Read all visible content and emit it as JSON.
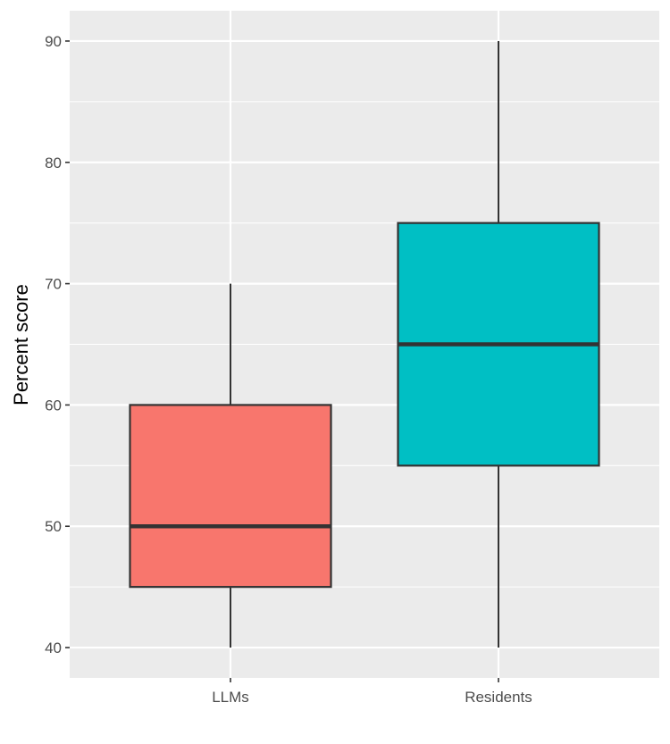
{
  "chart_data": {
    "type": "boxplot",
    "title": "",
    "xlabel": "",
    "ylabel": "Percent score",
    "ylim": [
      37.5,
      92.5
    ],
    "y_ticks": [
      40,
      50,
      60,
      70,
      80,
      90
    ],
    "grid": true,
    "legend": "none",
    "categories": [
      "LLMs",
      "Residents"
    ],
    "boxes": [
      {
        "category": "LLMs",
        "min": 40,
        "q1": 45,
        "median": 50,
        "q3": 60,
        "max": 70,
        "fill": "#F8766D"
      },
      {
        "category": "Residents",
        "min": 40,
        "q1": 55,
        "median": 65,
        "q3": 75,
        "max": 90,
        "fill": "#00BFC4"
      }
    ],
    "colors": {
      "panel_background": "#EBEBEB",
      "grid": "#FFFFFF",
      "box_outline": "#333333",
      "tick_text": "#4D4D4D"
    }
  }
}
